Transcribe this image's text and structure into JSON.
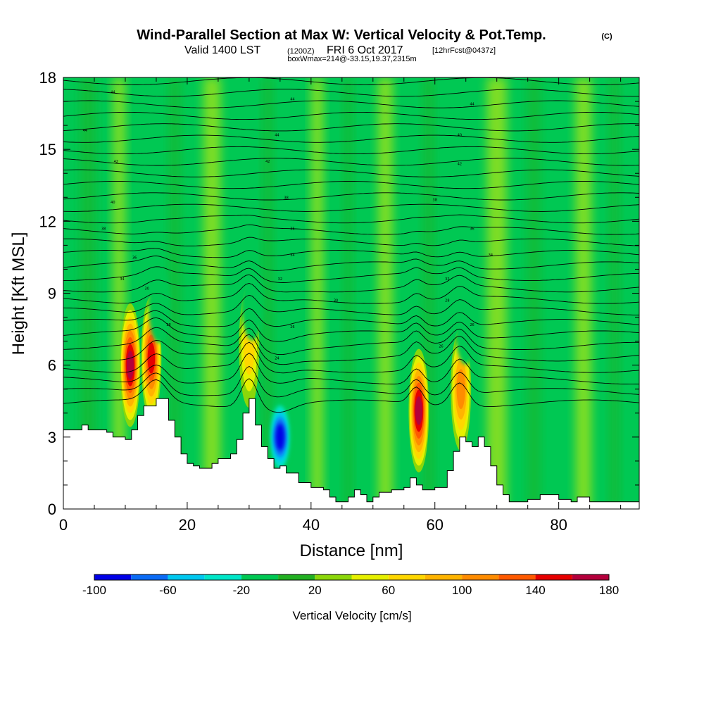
{
  "chart_data": {
    "type": "heatmap",
    "title": "Wind-Parallel Section at Max W: Vertical Velocity & Pot.Temp.",
    "title_unit": "(C)",
    "subtitle_main": "Valid 1400 LST",
    "subtitle_z": "(1200Z)",
    "subtitle_date": "FRI 6 Oct 2017",
    "subtitle_fcst": "[12hrFcst@0437z]",
    "subtitle3": "boxWmax=214@-33.15,19.37,2315m",
    "xlabel": "Distance [nm]",
    "ylabel": "Height [Kft MSL]",
    "xlim": [
      0,
      93
    ],
    "ylim": [
      0,
      18
    ],
    "x_ticks": [
      0,
      20,
      40,
      60,
      80
    ],
    "y_ticks": [
      0,
      3,
      6,
      9,
      12,
      15,
      18
    ],
    "colorbar": {
      "label": "Vertical Velocity [cm/s]",
      "range": [
        -100,
        180
      ],
      "step": 20,
      "tick_values": [
        -100,
        -60,
        -20,
        20,
        60,
        100,
        140,
        180
      ],
      "colors": [
        "#0000e6",
        "#0a6bf5",
        "#00c8f0",
        "#00e6c8",
        "#00c853",
        "#22b022",
        "#8cd70a",
        "#e6f000",
        "#ffd700",
        "#ffb400",
        "#ff8c00",
        "#ff5a00",
        "#e60000",
        "#b4003c"
      ]
    },
    "terrain_kft": [
      [
        0,
        3.3
      ],
      [
        2,
        3.3
      ],
      [
        3,
        3.5
      ],
      [
        4,
        3.3
      ],
      [
        7,
        3.2
      ],
      [
        8,
        3.0
      ],
      [
        10,
        2.9
      ],
      [
        11,
        3.3
      ],
      [
        12,
        3.9
      ],
      [
        13,
        4.3
      ],
      [
        14,
        4.3
      ],
      [
        15,
        4.6
      ],
      [
        16,
        4.6
      ],
      [
        17,
        3.7
      ],
      [
        18,
        3.0
      ],
      [
        19,
        2.3
      ],
      [
        20,
        1.9
      ],
      [
        21,
        1.8
      ],
      [
        22,
        1.7
      ],
      [
        24,
        1.9
      ],
      [
        25,
        2.1
      ],
      [
        27,
        2.3
      ],
      [
        28,
        2.9
      ],
      [
        29,
        4.0
      ],
      [
        30,
        4.6
      ],
      [
        31,
        3.5
      ],
      [
        32,
        2.6
      ],
      [
        33,
        2.1
      ],
      [
        34,
        1.7
      ],
      [
        35,
        1.8
      ],
      [
        36,
        1.5
      ],
      [
        38,
        1.1
      ],
      [
        40,
        0.9
      ],
      [
        42,
        0.8
      ],
      [
        43,
        0.5
      ],
      [
        44,
        0.3
      ],
      [
        46,
        0.5
      ],
      [
        47,
        0.8
      ],
      [
        48,
        0.6
      ],
      [
        49,
        0.3
      ],
      [
        50,
        0.5
      ],
      [
        51,
        0.7
      ],
      [
        53,
        0.8
      ],
      [
        55,
        0.9
      ],
      [
        56,
        1.3
      ],
      [
        57,
        1.0
      ],
      [
        58,
        0.8
      ],
      [
        60,
        0.9
      ],
      [
        62,
        1.6
      ],
      [
        63,
        2.4
      ],
      [
        64,
        3.0
      ],
      [
        65,
        2.8
      ],
      [
        66,
        2.6
      ],
      [
        67,
        3.0
      ],
      [
        68,
        2.6
      ],
      [
        69,
        1.8
      ],
      [
        70,
        1.0
      ],
      [
        71,
        0.6
      ],
      [
        72,
        0.3
      ],
      [
        75,
        0.4
      ],
      [
        77,
        0.6
      ],
      [
        80,
        0.4
      ],
      [
        82,
        0.3
      ],
      [
        83,
        0.5
      ],
      [
        85,
        0.3
      ],
      [
        90,
        0.3
      ],
      [
        93,
        0.3
      ]
    ],
    "updraft_cores": [
      {
        "x": 10.8,
        "z": 6.0,
        "peak_cm_s": 160
      },
      {
        "x": 14.2,
        "z": 6.3,
        "peak_cm_s": 140
      },
      {
        "x": 30.0,
        "z": 6.8,
        "peak_cm_s": 60
      },
      {
        "x": 57.4,
        "z": 4.1,
        "peak_cm_s": 160
      },
      {
        "x": 64.2,
        "z": 5.0,
        "peak_cm_s": 100
      }
    ],
    "downdraft_cores": [
      {
        "x": 35.0,
        "z": 3.0,
        "peak_cm_s": -100
      },
      {
        "x": 15.5,
        "z": 8.5,
        "peak_cm_s": -20
      },
      {
        "x": 30.5,
        "z": 8.6,
        "peak_cm_s": -20
      },
      {
        "x": 65.0,
        "z": 7.6,
        "peak_cm_s": -20
      }
    ],
    "isentrope_labels": [
      "44",
      "44",
      "44",
      "44",
      "44",
      "42",
      "42",
      "42",
      "40",
      "40",
      "38",
      "38",
      "38",
      "36",
      "36",
      "36",
      "34",
      "34",
      "34",
      "32",
      "32",
      "30",
      "30",
      "28",
      "28",
      "26",
      "26",
      "24",
      "26"
    ]
  }
}
